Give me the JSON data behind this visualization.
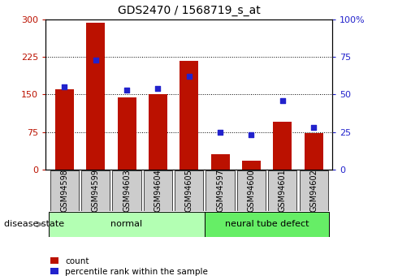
{
  "title": "GDS2470 / 1568719_s_at",
  "categories": [
    "GSM94598",
    "GSM94599",
    "GSM94603",
    "GSM94604",
    "GSM94605",
    "GSM94597",
    "GSM94600",
    "GSM94601",
    "GSM94602"
  ],
  "count_values": [
    160,
    293,
    145,
    150,
    218,
    30,
    18,
    95,
    72
  ],
  "percentile_values": [
    55,
    73,
    53,
    54,
    62,
    25,
    23,
    46,
    28
  ],
  "groups": [
    {
      "label": "normal",
      "indices": [
        0,
        1,
        2,
        3,
        4
      ],
      "color": "#b3ffb3"
    },
    {
      "label": "neural tube defect",
      "indices": [
        5,
        6,
        7,
        8
      ],
      "color": "#66ee66"
    }
  ],
  "bar_color": "#bb1100",
  "dot_color": "#2222cc",
  "ylim_left": [
    0,
    300
  ],
  "ylim_right": [
    0,
    100
  ],
  "yticks_left": [
    0,
    75,
    150,
    225,
    300
  ],
  "yticks_right": [
    0,
    25,
    50,
    75,
    100
  ],
  "tick_bg_color": "#cccccc",
  "disease_state_label": "disease state",
  "legend_count": "count",
  "legend_pct": "percentile rank within the sample"
}
